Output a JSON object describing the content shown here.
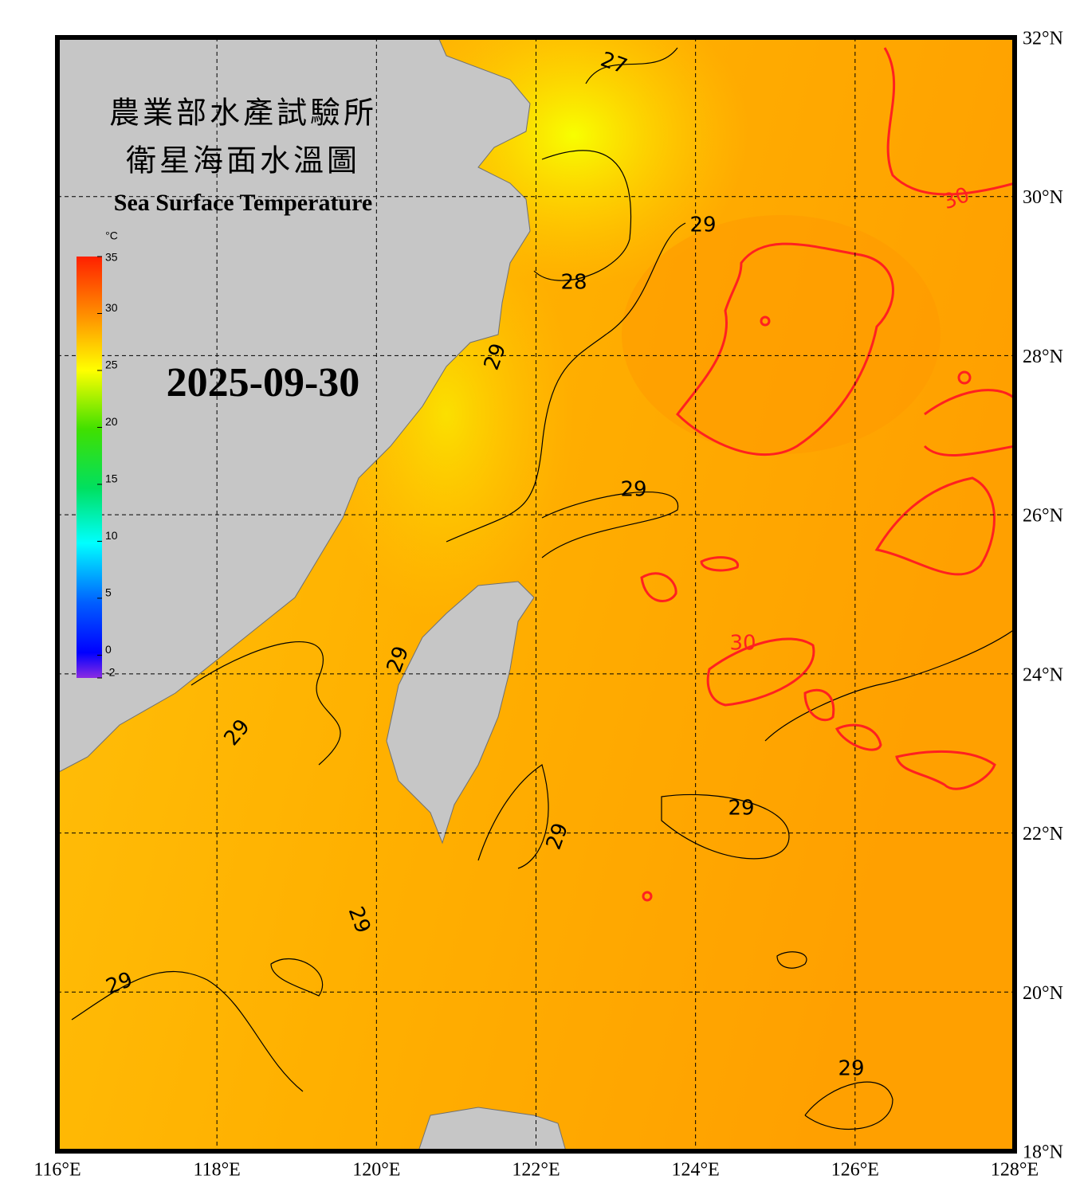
{
  "header": {
    "title_zh_line1": "農業部水產試驗所",
    "title_zh_line2": "衛星海面水溫圖",
    "title_en": "Sea Surface Temperature"
  },
  "date": "2025-09-30",
  "colorbar": {
    "unit": "°C",
    "ticks": [
      35,
      30,
      25,
      20,
      15,
      10,
      5,
      0,
      -2
    ]
  },
  "longitude_labels": [
    "116°E",
    "118°E",
    "120°E",
    "122°E",
    "124°E",
    "126°E",
    "128°E"
  ],
  "latitude_labels": [
    "32°N",
    "30°N",
    "28°N",
    "26°N",
    "24°N",
    "22°N",
    "20°N",
    "18°N"
  ],
  "contour_labels": [
    27,
    28,
    29,
    29,
    29,
    29,
    29,
    29,
    29,
    29,
    29,
    29,
    30,
    30
  ]
}
